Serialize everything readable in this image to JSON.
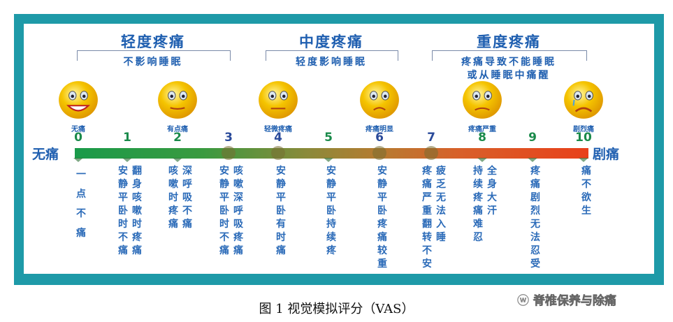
{
  "levels": [
    {
      "title": "轻度疼痛",
      "subtitle": "不影响睡眠"
    },
    {
      "title": "中度疼痛",
      "subtitle": "轻度影响睡眠"
    },
    {
      "title": "重度疼痛",
      "subtitle": "疼痛导致不能睡眠\n或从睡眠中痛醒"
    }
  ],
  "faces": [
    {
      "score": 0,
      "label": "无痛",
      "mood": "happy"
    },
    {
      "score": 2,
      "label": "有点痛",
      "mood": "slight"
    },
    {
      "score": 4,
      "label": "轻微疼痛",
      "mood": "neutral"
    },
    {
      "score": 6,
      "label": "疼痛明显",
      "mood": "sad"
    },
    {
      "score": 8,
      "label": "疼痛严重",
      "mood": "very-sad"
    },
    {
      "score": 10,
      "label": "剧烈痛",
      "mood": "crying"
    }
  ],
  "scale": {
    "start_label": "无痛",
    "end_label": "剧痛",
    "ticks": [
      {
        "n": "0",
        "color": "#1a8a4a",
        "marker": "triangle",
        "desc": [
          "一点不痛"
        ]
      },
      {
        "n": "1",
        "color": "#1a8a4a",
        "marker": "triangle",
        "desc": [
          "安静平卧时不痛",
          "翻身咳嗽时疼痛"
        ]
      },
      {
        "n": "2",
        "color": "#1a8a4a",
        "marker": "triangle",
        "desc": [
          "咳嗽时疼痛",
          "深呼吸不痛"
        ]
      },
      {
        "n": "3",
        "color": "#2a4a9a",
        "marker": "circle",
        "desc": [
          "安静平卧时不痛",
          "咳嗽深呼吸疼痛"
        ]
      },
      {
        "n": "4",
        "color": "#2a4a9a",
        "marker": "circle",
        "desc": [
          "安静平卧有时痛"
        ]
      },
      {
        "n": "5",
        "color": "#1a8a4a",
        "marker": "triangle",
        "desc": [
          "安静平卧持续疼"
        ]
      },
      {
        "n": "6",
        "color": "#2a4a9a",
        "marker": "circle",
        "desc": [
          "安静平卧疼痛较重"
        ]
      },
      {
        "n": "7",
        "color": "#2a4a9a",
        "marker": "circle",
        "desc": [
          "疼痛严重翻转不安",
          "疲乏无法入睡"
        ]
      },
      {
        "n": "8",
        "color": "#1a8a4a",
        "marker": "triangle",
        "desc": [
          "持续疼痛难忍",
          "全身大汗"
        ]
      },
      {
        "n": "9",
        "color": "#1a8a4a",
        "marker": "triangle",
        "desc": [
          "疼痛剧烈无法忍受"
        ]
      },
      {
        "n": "10",
        "color": "#1a8a4a",
        "marker": "triangle",
        "desc": [
          "痛不欲生"
        ]
      }
    ]
  },
  "caption": "图 1  视觉模拟评分（VAS）",
  "watermark": "脊椎保养与除痛",
  "colors": {
    "frame": "#1e9aa8",
    "text": "#1f5fb0",
    "bar_start": "#1a9a4a",
    "bar_end": "#e8401a",
    "face": "#f5c400"
  }
}
